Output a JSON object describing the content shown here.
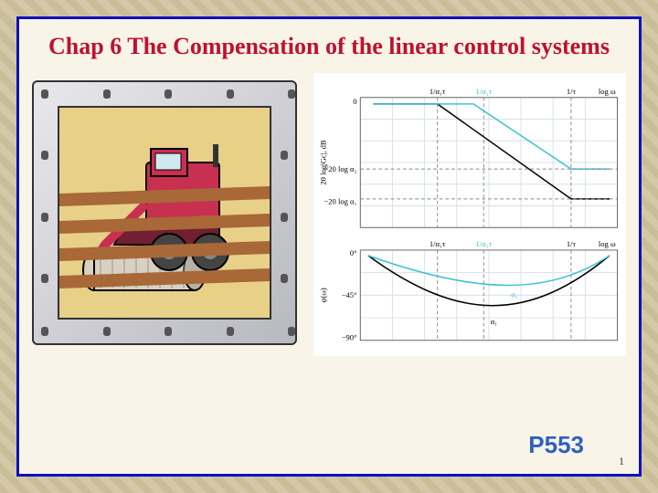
{
  "slide": {
    "title": "Chap 6  The Compensation of the linear control systems",
    "page_ref": "P553",
    "page_num": "1"
  },
  "colors": {
    "bg_pattern_light": "#d4c8a8",
    "bg_pattern_dark": "#c4b890",
    "frame_border": "#1010c0",
    "frame_fill": "#f8f5e8",
    "title_color": "#c01030",
    "page_ref_color": "#3060c0"
  },
  "illustration": {
    "subject": "combine-harvester",
    "body_color": "#c83050",
    "dark_color": "#702030",
    "wheel_color": "#444444",
    "reel_color": "#d8d0c0",
    "sky_color": "#e8d088",
    "stripe_color": "#a86838",
    "frame_metal_light": "#e8e8ec",
    "frame_metal_dark": "#b8b8c0",
    "rivets": 16
  },
  "bode": {
    "type": "bode-plot",
    "background_color": "#ffffff",
    "grid_color": "#d8e0e8",
    "axis_color": "#666666",
    "curve1_color": "#000000",
    "curve2_color": "#40c0d0",
    "dash_color": "#888888",
    "mag": {
      "ylabel": "20 log|Gc|, dB",
      "xlabel": "log ω",
      "yticks": [
        "0",
        "−20 log α₂",
        "−20 log α₁"
      ],
      "xticks": [
        "1/α₁τ",
        "1/α₂τ",
        "1/τ"
      ],
      "line1": {
        "pts": [
          [
            0.05,
            0.05
          ],
          [
            0.3,
            0.05
          ],
          [
            0.82,
            0.78
          ],
          [
            0.97,
            0.78
          ]
        ]
      },
      "line2": {
        "pts": [
          [
            0.05,
            0.05
          ],
          [
            0.44,
            0.05
          ],
          [
            0.82,
            0.55
          ],
          [
            0.97,
            0.55
          ]
        ]
      }
    },
    "phase": {
      "ylabel": "φ(ω)",
      "xlabel": "log ω",
      "yticks": [
        "0°",
        "−45°",
        "−90°"
      ],
      "xticks": [
        "1/α₁τ",
        "1/α₂τ",
        "1/τ"
      ],
      "curve1": {
        "min_y": 0.8,
        "min_x": 0.52,
        "label": "α₁"
      },
      "curve2": {
        "min_y": 0.5,
        "min_x": 0.6,
        "label": "α₂"
      }
    }
  }
}
